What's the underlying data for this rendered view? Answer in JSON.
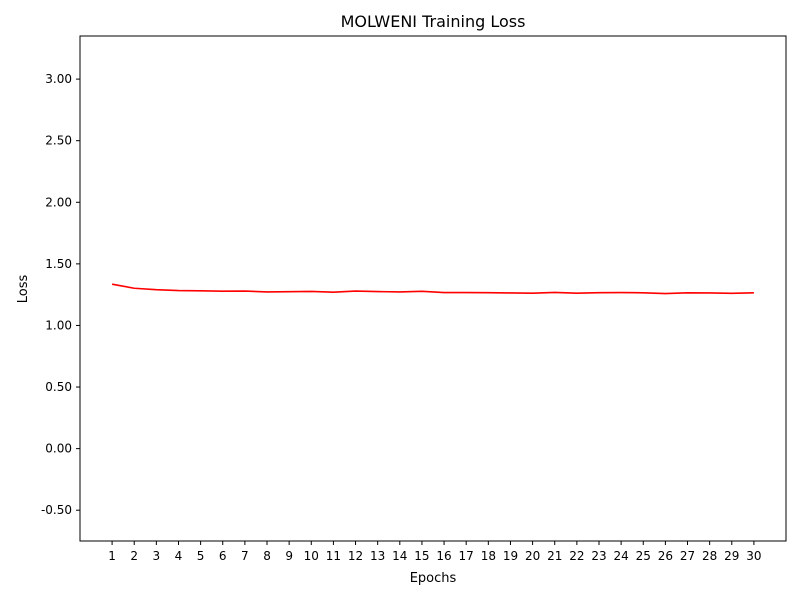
{
  "chart_data": {
    "type": "line",
    "title": "MOLWENI Training Loss",
    "xlabel": "Epochs",
    "ylabel": "Loss",
    "x": [
      1,
      2,
      3,
      4,
      5,
      6,
      7,
      8,
      9,
      10,
      11,
      12,
      13,
      14,
      15,
      16,
      17,
      18,
      19,
      20,
      21,
      22,
      23,
      24,
      25,
      26,
      27,
      28,
      29,
      30
    ],
    "xlim": [
      -0.45,
      31.45
    ],
    "ylim": [
      -0.75,
      3.35
    ],
    "yticks": [
      -0.5,
      0.0,
      0.5,
      1.0,
      1.5,
      2.0,
      2.5,
      3.0
    ],
    "ytick_labels": [
      "-0.50",
      "0.00",
      "0.50",
      "1.00",
      "1.50",
      "2.00",
      "2.50",
      "3.00"
    ],
    "grid": false,
    "series": [
      {
        "color": "#ff0000",
        "values": [
          1.335,
          1.302,
          1.29,
          1.283,
          1.281,
          1.278,
          1.279,
          1.272,
          1.274,
          1.276,
          1.27,
          1.279,
          1.275,
          1.272,
          1.277,
          1.267,
          1.267,
          1.266,
          1.264,
          1.262,
          1.268,
          1.262,
          1.266,
          1.267,
          1.265,
          1.259,
          1.265,
          1.264,
          1.261,
          1.265
        ]
      }
    ]
  }
}
